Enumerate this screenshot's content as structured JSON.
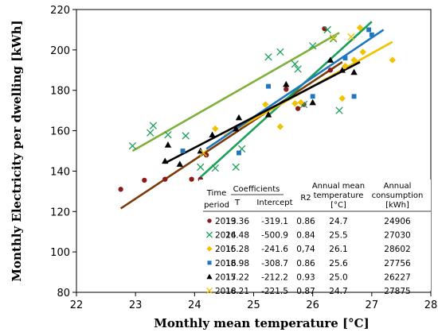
{
  "chart_data": {
    "type": "scatter",
    "xlabel": "Monthly mean temperature [°C]",
    "ylabel": "Monthly Electricity per dwelling  [kWh]",
    "xlim": [
      22,
      28
    ],
    "ylim": [
      80,
      220
    ],
    "xticks": [
      22,
      23,
      24,
      25,
      26,
      27,
      28
    ],
    "yticks": [
      80,
      100,
      120,
      140,
      160,
      180,
      200,
      220
    ],
    "grid": false,
    "legend_placement": "bottom-right",
    "table": {
      "col_time": [
        "Time",
        "period"
      ],
      "col_coeff": "Coefficients",
      "col_t": "T",
      "col_intercept": "Intercept",
      "col_r2": "R2",
      "col_temp": [
        "Annual mean",
        "temperature",
        "[°C]"
      ],
      "col_cons": [
        "Annual",
        "consumption",
        "[kWh]"
      ]
    },
    "series": [
      {
        "name": "2013",
        "marker": "circle",
        "color": "#8B1A1A",
        "line_color": "#7A3B0E",
        "T": "19.36",
        "intercept": "-319.1",
        "r2": "0.86",
        "temp": "24.7",
        "consumption": "24906",
        "line": [
          [
            22.75,
            121.5
          ],
          [
            26.5,
            194
          ]
        ],
        "points": [
          [
            22.75,
            131
          ],
          [
            23.15,
            135.5
          ],
          [
            23.5,
            136
          ],
          [
            23.95,
            136
          ],
          [
            24.1,
            136
          ],
          [
            24.2,
            148
          ],
          [
            25.55,
            180.5
          ],
          [
            25.75,
            171
          ],
          [
            25.85,
            173
          ],
          [
            26.2,
            210.5
          ],
          [
            26.3,
            190
          ]
        ]
      },
      {
        "name": "2014",
        "marker": "x",
        "color": "#1BA05A",
        "line_color": "#1BA05A",
        "T": "26.48",
        "intercept": "-500.9",
        "r2": "0.84",
        "temp": "25.5",
        "consumption": "27030",
        "line": [
          [
            24.1,
            137
          ],
          [
            27.0,
            214
          ]
        ],
        "points": [
          [
            22.95,
            152.5
          ],
          [
            23.25,
            159
          ],
          [
            23.3,
            162.5
          ],
          [
            23.55,
            158
          ],
          [
            23.85,
            157.5
          ],
          [
            24.1,
            142
          ],
          [
            24.35,
            141.5
          ],
          [
            24.7,
            142
          ],
          [
            24.8,
            151
          ],
          [
            25.25,
            196.5
          ],
          [
            25.45,
            199
          ],
          [
            25.7,
            193
          ],
          [
            25.75,
            190.5
          ],
          [
            25.85,
            173
          ],
          [
            26.0,
            202
          ],
          [
            26.25,
            210
          ],
          [
            26.35,
            205.5
          ],
          [
            26.45,
            170
          ]
        ]
      },
      {
        "name": "2015",
        "marker": "diamond",
        "color": "#F2C200",
        "line_color": "#F2C200",
        "T": "16.28",
        "intercept": "-241.6",
        "r2": "0,74",
        "temp": "26.1",
        "consumption": "28602",
        "line": [
          [
            24.5,
            157.5
          ],
          [
            27.35,
            204
          ]
        ],
        "points": [
          [
            24.35,
            161
          ],
          [
            25.2,
            173
          ],
          [
            25.45,
            162
          ],
          [
            25.7,
            173.5
          ],
          [
            25.8,
            174
          ],
          [
            26.5,
            176
          ],
          [
            26.55,
            192
          ],
          [
            26.7,
            195
          ],
          [
            26.8,
            211
          ],
          [
            26.85,
            199
          ],
          [
            27.35,
            195
          ]
        ]
      },
      {
        "name": "2016",
        "marker": "square",
        "color": "#1F77C0",
        "line_color": "#1F77C0",
        "T": "18.98",
        "intercept": "-308.7",
        "r2": "0.86",
        "temp": "25.6",
        "consumption": "27756",
        "line": [
          [
            24.2,
            151
          ],
          [
            27.2,
            210
          ]
        ],
        "points": [
          [
            23.8,
            150
          ],
          [
            24.75,
            149
          ],
          [
            25.25,
            182
          ],
          [
            26.0,
            177
          ],
          [
            26.55,
            196
          ],
          [
            26.7,
            177
          ],
          [
            26.95,
            210
          ],
          [
            27.0,
            207.5
          ]
        ]
      },
      {
        "name": "2017",
        "marker": "triangle",
        "color": "#000000",
        "line_color": "#000000",
        "T": "15.22",
        "intercept": "-212.2",
        "r2": "0.93",
        "temp": "25.0",
        "consumption": "26227",
        "line": [
          [
            23.5,
            144
          ],
          [
            26.8,
            194
          ]
        ],
        "points": [
          [
            23.5,
            145
          ],
          [
            23.55,
            153
          ],
          [
            23.75,
            143.5
          ],
          [
            24.1,
            150
          ],
          [
            24.3,
            158
          ],
          [
            24.7,
            161
          ],
          [
            24.75,
            166.5
          ],
          [
            25.25,
            168
          ],
          [
            25.55,
            183
          ],
          [
            26.0,
            174
          ],
          [
            26.3,
            195
          ],
          [
            26.5,
            190
          ],
          [
            26.7,
            189
          ]
        ]
      },
      {
        "name": "2018",
        "marker": "x",
        "color": "#F2C200",
        "line_color": "#7FB03C",
        "T": "16.21",
        "intercept": "-221.5",
        "r2": "0.87",
        "temp": "24.7",
        "consumption": "27875",
        "line": [
          [
            22.95,
            150
          ],
          [
            26.45,
            208.5
          ]
        ],
        "points": [
          [
            24.15,
            149
          ],
          [
            26.35,
            206
          ],
          [
            26.65,
            206.5
          ]
        ]
      }
    ]
  }
}
